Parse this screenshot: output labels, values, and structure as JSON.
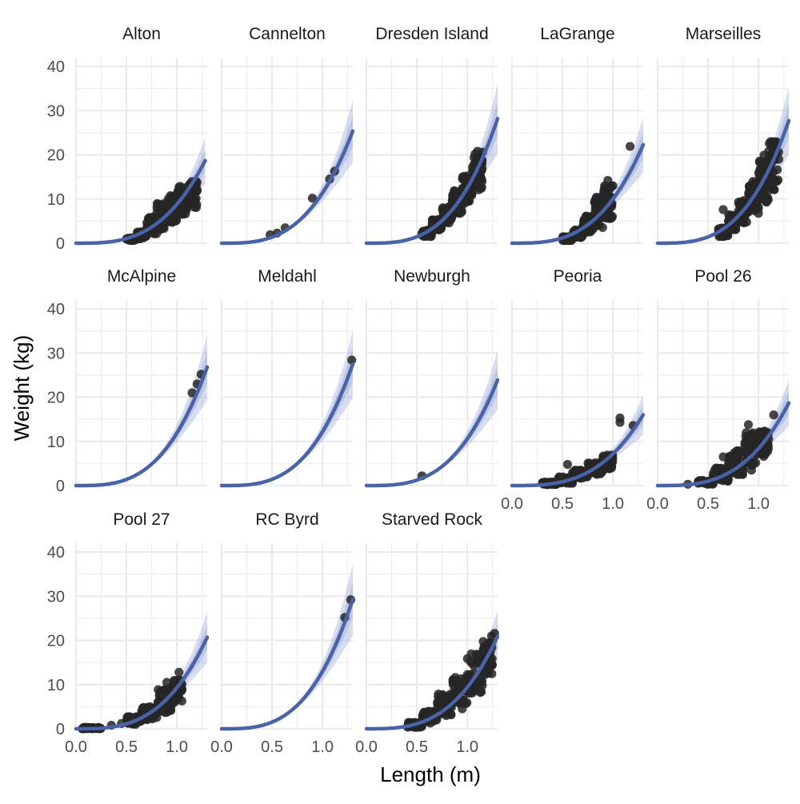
{
  "chart_data": {
    "type": "scatter",
    "title": "",
    "xlabel": "Length (m)",
    "ylabel": "Weight (kg)",
    "xlim": [
      0.0,
      1.3
    ],
    "ylim": [
      0,
      42
    ],
    "x_ticks": [
      0.0,
      0.5,
      1.0
    ],
    "x_tick_labels": [
      "0.0",
      "0.5",
      "1.0"
    ],
    "y_ticks": [
      0,
      10,
      20,
      30,
      40
    ],
    "y_tick_labels": [
      "0",
      "10",
      "20",
      "30",
      "40"
    ],
    "grid": true,
    "layout": {
      "columns": 5,
      "rows": 3
    },
    "colors": {
      "fit_line": "#4a63a8",
      "band": "#8e9fd0",
      "points": "#262626",
      "grid": "#ebebeb",
      "text": "#4d4d4d"
    },
    "panels": [
      {
        "name": "Alton",
        "fit": {
          "coef": 8.8,
          "exponent": 3.05,
          "xmax": 1.28
        },
        "points": {
          "ranges": [
            [
              0.5,
              0.6,
              0.6,
              1.2
            ],
            [
              0.6,
              0.7,
              1.0,
              2.6
            ],
            [
              0.7,
              0.8,
              2.0,
              6.0
            ],
            [
              0.8,
              0.9,
              3.0,
              9.0
            ],
            [
              0.9,
              1.0,
              4.5,
              11.0
            ],
            [
              1.0,
              1.1,
              6.5,
              13.0
            ],
            [
              1.1,
              1.2,
              8.0,
              14.0
            ]
          ],
          "explicit": [
            [
              1.02,
              12.7
            ],
            [
              1.05,
              12.3
            ],
            [
              1.2,
              12.0
            ]
          ]
        }
      },
      {
        "name": "Cannelton",
        "fit": {
          "coef": 11.4,
          "exponent": 3.05,
          "xmax": 1.3
        },
        "points": {
          "ranges": [],
          "explicit": [
            [
              0.48,
              1.9
            ],
            [
              0.55,
              2.3
            ],
            [
              0.63,
              3.5
            ],
            [
              0.9,
              10.2
            ],
            [
              1.07,
              14.5
            ],
            [
              1.12,
              16.3
            ]
          ]
        }
      },
      {
        "name": "Dresden Island",
        "fit": {
          "coef": 12.5,
          "exponent": 3.1,
          "xmax": 1.3
        },
        "points": {
          "ranges": [
            [
              0.55,
              0.65,
              1.5,
              3.0
            ],
            [
              0.65,
              0.75,
              3.0,
              5.5
            ],
            [
              0.75,
              0.85,
              4.5,
              8.5
            ],
            [
              0.85,
              0.95,
              6.5,
              12.0
            ],
            [
              0.95,
              1.05,
              9.0,
              15.5
            ],
            [
              1.05,
              1.15,
              12.0,
              20.5
            ]
          ],
          "explicit": [
            [
              1.1,
              20.8
            ],
            [
              1.15,
              20.6
            ],
            [
              1.13,
              14.5
            ]
          ]
        }
      },
      {
        "name": "LaGrange",
        "fit": {
          "coef": 10.0,
          "exponent": 3.05,
          "xmax": 1.3
        },
        "points": {
          "ranges": [
            [
              0.5,
              0.6,
              0.6,
              1.5
            ],
            [
              0.6,
              0.7,
              1.2,
              3.0
            ],
            [
              0.7,
              0.8,
              2.5,
              6.5
            ],
            [
              0.8,
              0.9,
              3.5,
              11.0
            ],
            [
              0.9,
              1.0,
              5.5,
              13.0
            ]
          ],
          "explicit": [
            [
              0.95,
              14.2
            ],
            [
              1.0,
              13.0
            ],
            [
              1.17,
              21.9
            ]
          ]
        }
      },
      {
        "name": "Marseilles",
        "fit": {
          "coef": 12.3,
          "exponent": 3.1,
          "xmax": 1.3
        },
        "points": {
          "ranges": [
            [
              0.6,
              0.7,
              1.5,
              3.5
            ],
            [
              0.7,
              0.8,
              3.0,
              6.5
            ],
            [
              0.8,
              0.9,
              4.5,
              10.0
            ],
            [
              0.9,
              1.0,
              6.0,
              14.0
            ],
            [
              1.0,
              1.1,
              9.0,
              20.0
            ],
            [
              1.1,
              1.2,
              12.0,
              23.0
            ]
          ],
          "explicit": [
            [
              0.65,
              7.6
            ],
            [
              1.12,
              23.0
            ],
            [
              1.2,
              19.0
            ],
            [
              1.1,
              20.8
            ]
          ]
        }
      },
      {
        "name": "McAlpine",
        "fit": {
          "coef": 11.9,
          "exponent": 3.1,
          "xmax": 1.3
        },
        "points": {
          "ranges": [],
          "explicit": [
            [
              1.15,
              21.0
            ],
            [
              1.2,
              23.0
            ],
            [
              1.24,
              25.2
            ]
          ]
        }
      },
      {
        "name": "Meldahl",
        "fit": {
          "coef": 12.2,
          "exponent": 3.1,
          "xmax": 1.3
        },
        "points": {
          "ranges": [],
          "explicit": [
            [
              1.29,
              28.4
            ]
          ]
        }
      },
      {
        "name": "Newburgh",
        "fit": {
          "coef": 10.6,
          "exponent": 3.1,
          "xmax": 1.3
        },
        "points": {
          "ranges": [],
          "explicit": [
            [
              0.55,
              2.2
            ]
          ]
        }
      },
      {
        "name": "Peoria",
        "fit": {
          "coef": 7.2,
          "exponent": 3.05,
          "xmax": 1.3
        },
        "points": {
          "ranges": [
            [
              0.3,
              0.45,
              0.2,
              0.8
            ],
            [
              0.45,
              0.6,
              0.5,
              2.0
            ],
            [
              0.6,
              0.75,
              1.5,
              3.5
            ],
            [
              0.75,
              0.9,
              2.5,
              5.5
            ],
            [
              0.9,
              1.0,
              3.5,
              7.0
            ]
          ],
          "explicit": [
            [
              0.55,
              4.8
            ],
            [
              1.07,
              15.3
            ],
            [
              1.07,
              14.3
            ],
            [
              1.2,
              13.6
            ]
          ]
        }
      },
      {
        "name": "Pool 26",
        "fit": {
          "coef": 8.4,
          "exponent": 3.05,
          "xmax": 1.3
        },
        "points": {
          "ranges": [
            [
              0.4,
              0.55,
              0.3,
              1.2
            ],
            [
              0.55,
              0.7,
              1.0,
              4.0
            ],
            [
              0.7,
              0.85,
              2.5,
              8.0
            ],
            [
              0.85,
              1.0,
              4.5,
              12.0
            ],
            [
              1.0,
              1.1,
              6.5,
              12.5
            ]
          ],
          "explicit": [
            [
              0.3,
              0.3
            ],
            [
              0.65,
              6.5
            ],
            [
              0.9,
              13.8
            ],
            [
              0.93,
              3.5
            ],
            [
              1.15,
              16.0
            ],
            [
              1.1,
              10.5
            ]
          ]
        }
      },
      {
        "name": "Pool 27",
        "fit": {
          "coef": 9.3,
          "exponent": 3.05,
          "xmax": 1.3
        },
        "points": {
          "ranges": [
            [
              0.05,
              0.25,
              0.0,
              0.3
            ],
            [
              0.5,
              0.65,
              1.0,
              2.8
            ],
            [
              0.65,
              0.8,
              2.0,
              5.0
            ],
            [
              0.8,
              0.95,
              3.5,
              9.0
            ],
            [
              0.95,
              1.05,
              6.0,
              11.0
            ]
          ],
          "explicit": [
            [
              0.35,
              0.8
            ],
            [
              0.45,
              1.2
            ],
            [
              0.9,
              10.5
            ],
            [
              1.02,
              12.8
            ],
            [
              1.05,
              9.0
            ]
          ]
        }
      },
      {
        "name": "RC Byrd",
        "fit": {
          "coef": 13.0,
          "exponent": 3.1,
          "xmax": 1.3
        },
        "points": {
          "ranges": [],
          "explicit": [
            [
              1.22,
              25.2
            ],
            [
              1.28,
              29.2
            ]
          ]
        }
      },
      {
        "name": "Starved Rock",
        "fit": {
          "coef": 9.4,
          "exponent": 3.05,
          "xmax": 1.3
        },
        "points": {
          "ranges": [
            [
              0.4,
              0.55,
              0.3,
              1.5
            ],
            [
              0.55,
              0.7,
              1.2,
              4.0
            ],
            [
              0.7,
              0.85,
              3.0,
              8.0
            ],
            [
              0.85,
              1.0,
              5.0,
              12.0
            ],
            [
              1.0,
              1.15,
              8.0,
              17.0
            ],
            [
              1.15,
              1.25,
              12.0,
              20.0
            ]
          ],
          "explicit": [
            [
              0.95,
              4.5
            ],
            [
              1.2,
              18.8
            ],
            [
              1.27,
              21.6
            ],
            [
              1.24,
              21.0
            ]
          ]
        }
      }
    ]
  }
}
